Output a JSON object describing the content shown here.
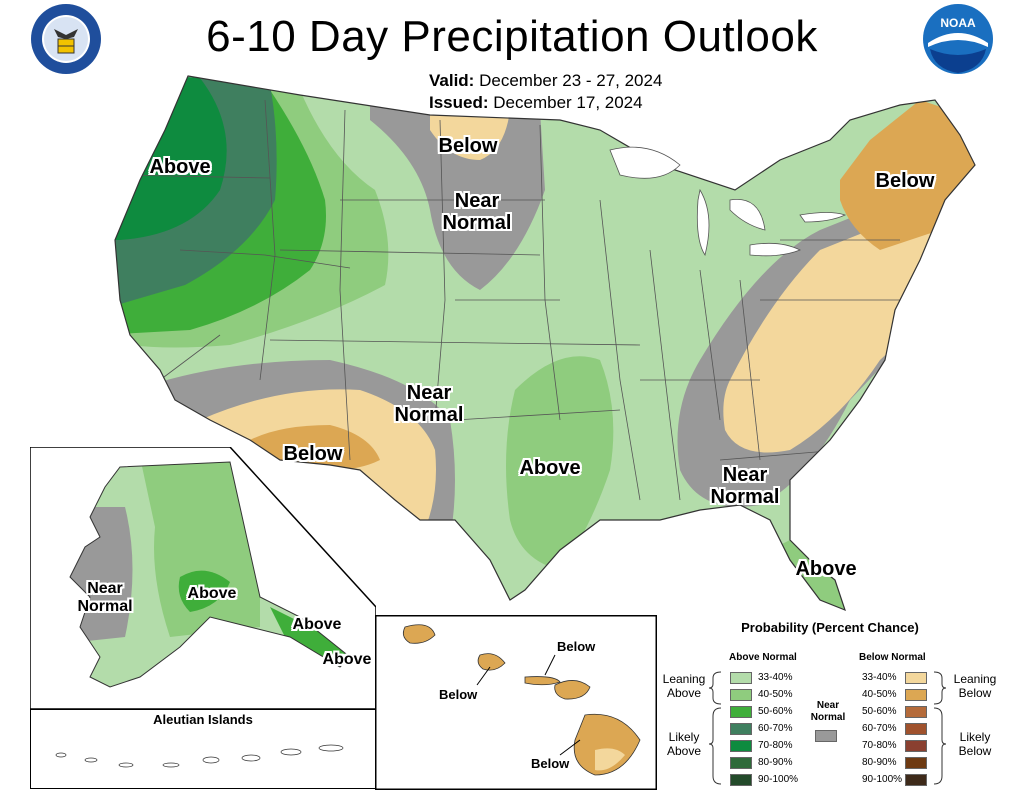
{
  "header": {
    "title": "6-10 Day Precipitation Outlook",
    "valid_label": "Valid:",
    "valid_value": "December 23 - 27, 2024",
    "issued_label": "Issued:",
    "issued_value": "December 17, 2024"
  },
  "logos": {
    "left": "department-of-commerce-seal",
    "right": "noaa-logo",
    "right_text": "NOAA"
  },
  "conus_labels": {
    "nw_above": "Above",
    "north_below": "Below",
    "north_near": "Near Normal",
    "ne_below": "Below",
    "sw_near": "Near Normal",
    "sw_below": "Below",
    "south_above": "Above",
    "se_near": "Near Normal",
    "fl_above": "Above"
  },
  "alaska": {
    "near": "Near Normal",
    "above_c": "Above",
    "above_se1": "Above",
    "above_se2": "Above",
    "aleutian": "Aleutian Islands"
  },
  "hawaii": {
    "below1": "Below",
    "below2": "Below",
    "below3": "Below"
  },
  "legend": {
    "title": "Probability (Percent Chance)",
    "above_header": "Above Normal",
    "below_header": "Below Normal",
    "near_header": "Near Normal",
    "leaning_above": "Leaning Above",
    "likely_above": "Likely Above",
    "leaning_below": "Leaning Below",
    "likely_below": "Likely Below",
    "above": [
      {
        "range": "33-40%",
        "color": "#b3dcaa"
      },
      {
        "range": "40-50%",
        "color": "#8fcc7e"
      },
      {
        "range": "50-60%",
        "color": "#3fae3a"
      },
      {
        "range": "60-70%",
        "color": "#3f7f5f"
      },
      {
        "range": "70-80%",
        "color": "#0e8b3f"
      },
      {
        "range": "80-90%",
        "color": "#2f6a3a"
      },
      {
        "range": "90-100%",
        "color": "#234a2a"
      }
    ],
    "below": [
      {
        "range": "33-40%",
        "color": "#f3d79c"
      },
      {
        "range": "40-50%",
        "color": "#dca753"
      },
      {
        "range": "50-60%",
        "color": "#b56b3a"
      },
      {
        "range": "60-70%",
        "color": "#a0522d"
      },
      {
        "range": "70-80%",
        "color": "#8a4030"
      },
      {
        "range": "80-90%",
        "color": "#6e3a12"
      },
      {
        "range": "90-100%",
        "color": "#3e2a1a"
      }
    ],
    "near_color": "#999999",
    "note_last_below_range": "90-100%"
  }
}
